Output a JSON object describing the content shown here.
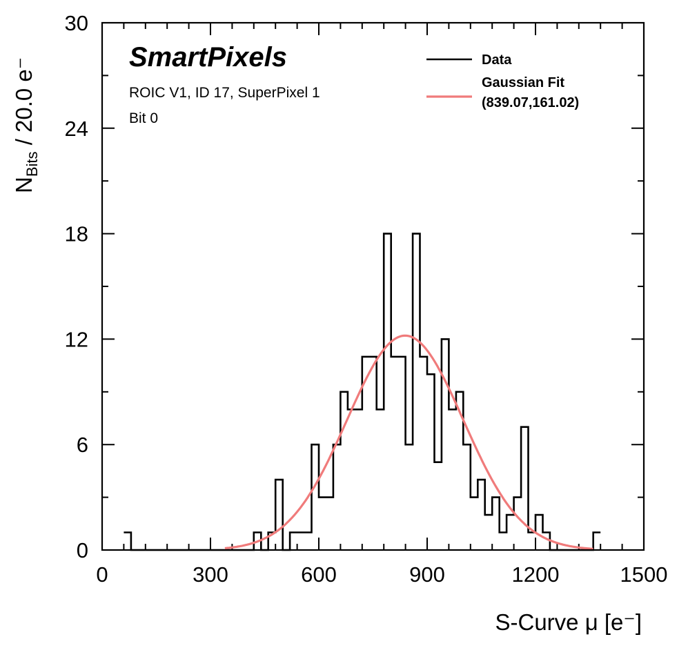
{
  "chart_data": {
    "type": "histogram",
    "bin_width": 20,
    "x_start": 60,
    "counts": [
      1,
      0,
      0,
      0,
      0,
      0,
      0,
      0,
      0,
      0,
      0,
      0,
      0,
      0,
      0,
      0,
      0,
      0,
      1,
      0,
      1,
      4,
      0,
      1,
      1,
      1,
      6,
      3,
      3,
      6,
      9,
      8,
      8,
      11,
      11,
      8,
      18,
      11,
      11,
      6,
      18,
      11,
      10,
      5,
      12,
      8,
      9,
      6,
      3,
      4,
      2,
      3,
      1,
      2,
      3,
      7,
      1,
      2,
      1,
      0,
      0,
      0,
      0,
      0,
      0,
      1
    ],
    "fit": {
      "mu": 839.07,
      "sigma": 161.02,
      "amplitude": 12.2,
      "x_min": 340,
      "x_max": 1360,
      "color": "#f07b7b"
    },
    "xlim": [
      0,
      1500
    ],
    "ylim": [
      0,
      30
    ],
    "x_ticks": [
      0,
      300,
      600,
      900,
      1200,
      1500
    ],
    "x_tick_labels": [
      "0",
      "300",
      "600",
      "900",
      "1200",
      "1500"
    ],
    "y_ticks": [
      0,
      6,
      12,
      18,
      24,
      30
    ],
    "y_tick_labels": [
      "0",
      "6",
      "12",
      "18",
      "24",
      "30"
    ],
    "x_minor_step": 60,
    "y_minor_step": 3,
    "xlabel": "S-Curve μ [e⁻]",
    "ylabel_main": "N",
    "ylabel_sub": "Bits",
    "ylabel_rest": " / 20.0 e⁻",
    "brand": "SmartPixels",
    "info_lines": [
      "ROIC V1, ID 17, SuperPixel 1",
      "Bit 0"
    ],
    "legend": [
      {
        "label": "Data",
        "color": "#000000"
      },
      {
        "label_lines": [
          "Gaussian Fit",
          "(839.07,161.02)"
        ],
        "color": "#f07b7b"
      }
    ]
  }
}
